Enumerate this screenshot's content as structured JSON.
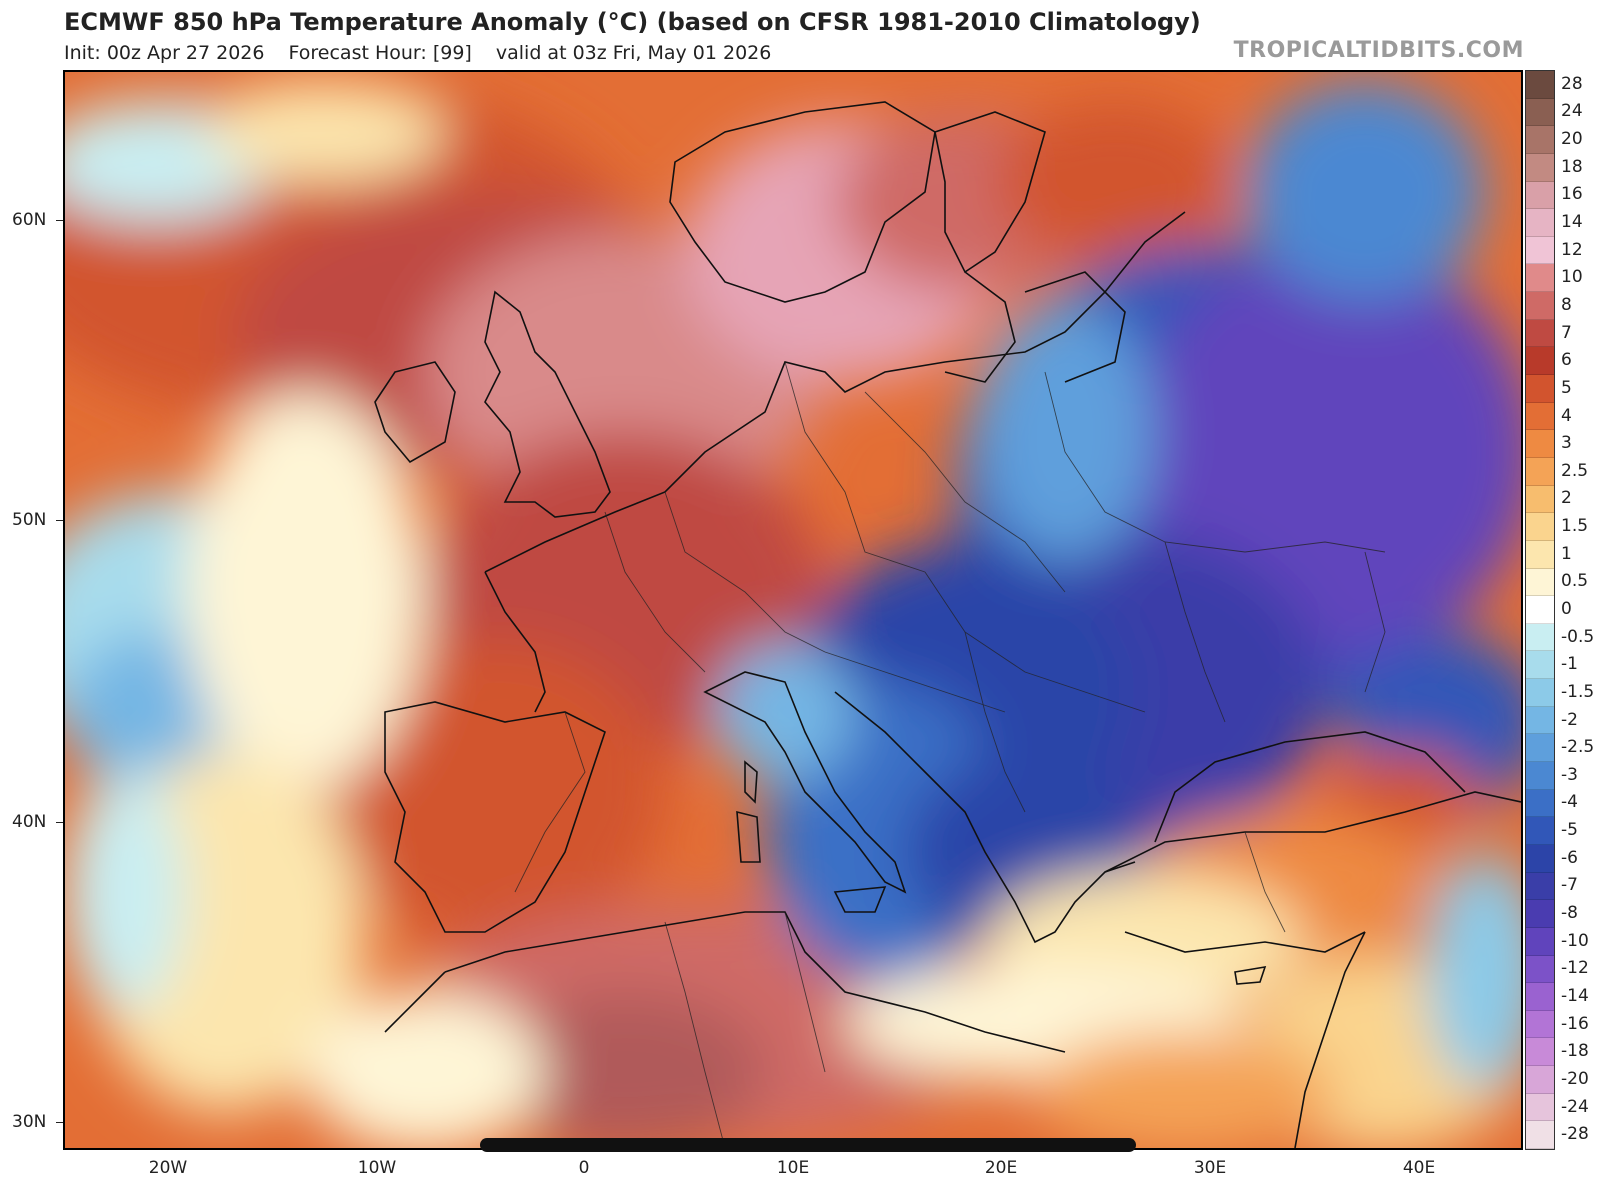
{
  "header": {
    "title": "ECMWF 850 hPa Temperature Anomaly (°C) (based on CFSR 1981-2010 Climatology)",
    "init": "Init: 00z Apr 27 2026",
    "forecast_hour": "Forecast Hour: [99]",
    "valid": "valid at 03z Fri, May 01 2026",
    "brand": "TROPICALTIDBITS.COM"
  },
  "axes": {
    "lat_labels": [
      "60N",
      "50N",
      "40N",
      "30N"
    ],
    "lon_labels": [
      "20W",
      "10W",
      "0",
      "10E",
      "20E",
      "30E",
      "40E"
    ]
  },
  "colorbar": {
    "labels": [
      "28",
      "24",
      "20",
      "18",
      "16",
      "14",
      "12",
      "10",
      "8",
      "7",
      "6",
      "5",
      "4",
      "3",
      "2.5",
      "2",
      "1.5",
      "1",
      "0.5",
      "0",
      "-0.5",
      "-1",
      "-1.5",
      "-2",
      "-2.5",
      "-3",
      "-4",
      "-5",
      "-6",
      "-7",
      "-8",
      "-10",
      "-12",
      "-14",
      "-16",
      "-18",
      "-20",
      "-24",
      "-28"
    ],
    "colors": [
      "#6b4a3f",
      "#8a5f52",
      "#a87468",
      "#c28a82",
      "#d9a0a8",
      "#e6b4c4",
      "#f0c4d6",
      "#e08a8a",
      "#cf6a66",
      "#bf4a42",
      "#b83a2a",
      "#d2542e",
      "#e36e35",
      "#ee8a42",
      "#f4a356",
      "#f7bd6e",
      "#fad48e",
      "#fce6ae",
      "#fef5d6",
      "#ffffff",
      "#c9eef2",
      "#a8dcec",
      "#8ccae8",
      "#74b6e4",
      "#5e9fdc",
      "#4b88d2",
      "#3b6fc6",
      "#3157b8",
      "#2c44a8",
      "#3a3ea8",
      "#4a3cb0",
      "#6044bc",
      "#7c52c8",
      "#9a62d0",
      "#b274d6",
      "#c88ad8",
      "#d8a6d8",
      "#e6c4dc",
      "#f0e0e6"
    ]
  }
}
